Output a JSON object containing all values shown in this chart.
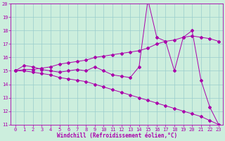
{
  "x": [
    0,
    1,
    2,
    3,
    4,
    5,
    6,
    7,
    8,
    9,
    10,
    11,
    12,
    13,
    14,
    15,
    16,
    17,
    18,
    19,
    20,
    21,
    22,
    23
  ],
  "line1": [
    15.0,
    15.4,
    15.3,
    15.1,
    15.0,
    14.9,
    15.0,
    15.1,
    15.0,
    15.3,
    15.0,
    14.7,
    14.6,
    14.5,
    15.3,
    20.3,
    17.5,
    17.2,
    15.0,
    17.5,
    18.0,
    14.3,
    12.3,
    11.0
  ],
  "line2": [
    15.0,
    15.1,
    15.1,
    15.2,
    15.3,
    15.5,
    15.6,
    15.7,
    15.8,
    16.0,
    16.1,
    16.2,
    16.3,
    16.4,
    16.5,
    16.7,
    17.0,
    17.2,
    17.3,
    17.5,
    17.6,
    17.5,
    17.4,
    17.2
  ],
  "line3": [
    15.0,
    15.0,
    14.9,
    14.8,
    14.7,
    14.5,
    14.4,
    14.3,
    14.2,
    14.0,
    13.8,
    13.6,
    13.4,
    13.2,
    13.0,
    12.8,
    12.6,
    12.4,
    12.2,
    12.0,
    11.8,
    11.6,
    11.3,
    11.0
  ],
  "line_color": "#aa00aa",
  "bg_color": "#cceedd",
  "grid_color": "#99cccc",
  "xlabel": "Windchill (Refroidissement éolien,°C)",
  "ylim": [
    11,
    20
  ],
  "xlim": [
    -0.5,
    23.5
  ],
  "yticks": [
    11,
    12,
    13,
    14,
    15,
    16,
    17,
    18,
    19,
    20
  ],
  "xticks": [
    0,
    1,
    2,
    3,
    4,
    5,
    6,
    7,
    8,
    9,
    10,
    11,
    12,
    13,
    14,
    15,
    16,
    17,
    18,
    19,
    20,
    21,
    22,
    23
  ],
  "tick_fontsize": 5.0,
  "xlabel_fontsize": 5.5
}
